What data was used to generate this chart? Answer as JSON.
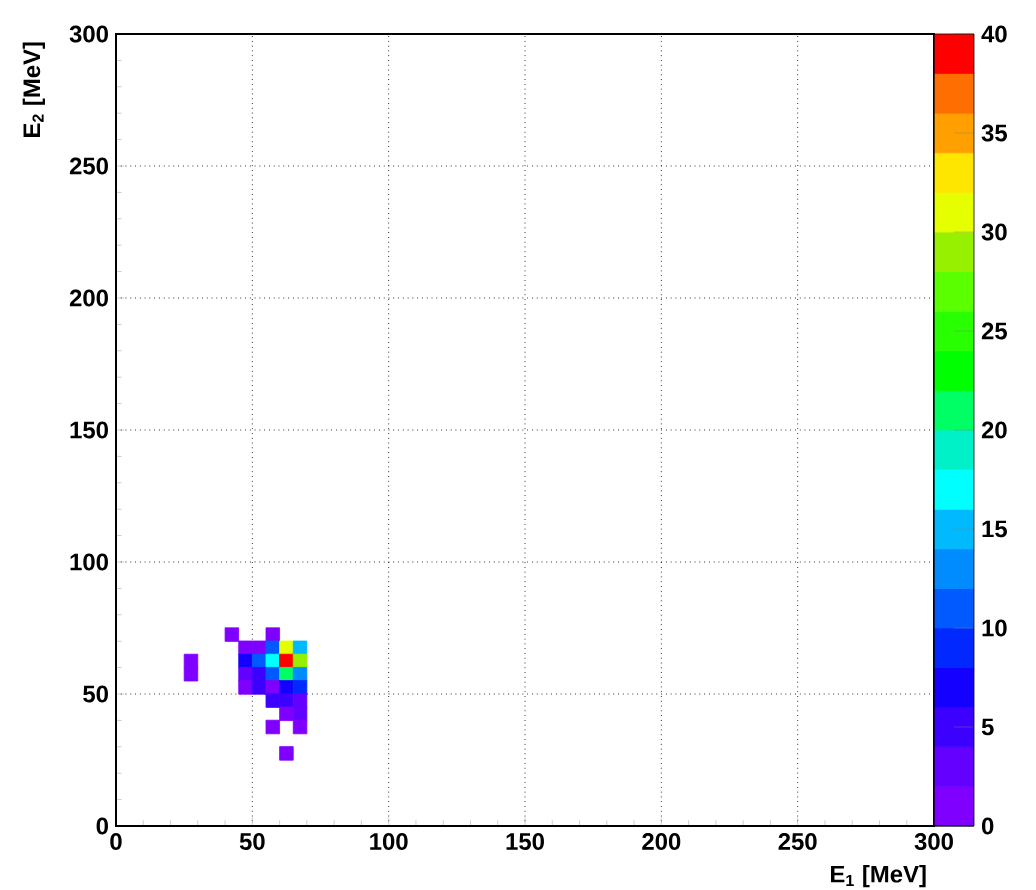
{
  "chart_data": {
    "type": "scatter",
    "xlabel": "E$_{1}$ [MeV]",
    "ylabel": "E$_{2}$ [MeV]",
    "xlim": [
      0,
      300
    ],
    "ylim": [
      0,
      300
    ],
    "xticks": [
      0,
      50,
      100,
      150,
      200,
      250,
      300
    ],
    "yticks": [
      0,
      50,
      100,
      150,
      200,
      250,
      300
    ],
    "clim": [
      0,
      40
    ],
    "cticks": [
      0,
      5,
      10,
      15,
      20,
      25,
      30,
      35,
      40
    ],
    "grid": true,
    "marker": "square",
    "x": [
      42.5,
      57.5,
      47.5,
      52.5,
      57.5,
      62.5,
      67.5,
      27.5,
      47.5,
      52.5,
      57.5,
      62.5,
      67.5,
      27.5,
      47.5,
      52.5,
      57.5,
      62.5,
      67.5,
      47.5,
      52.5,
      57.5,
      62.5,
      67.5,
      57.5,
      62.5,
      67.5,
      62.5,
      67.5,
      57.5,
      67.5,
      62.5
    ],
    "values": [
      72.5,
      72.5,
      67.5,
      67.5,
      67.5,
      67.5,
      67.5,
      62.5,
      62.5,
      62.5,
      62.5,
      62.5,
      62.5,
      57.5,
      57.5,
      57.5,
      57.5,
      57.5,
      57.5,
      52.5,
      52.5,
      52.5,
      52.5,
      52.5,
      47.5,
      47.5,
      47.5,
      42.5,
      42.5,
      37.5,
      37.5,
      27.5
    ],
    "cvalues": [
      1,
      1,
      1,
      1,
      11,
      31,
      14,
      1,
      7,
      11,
      17,
      39,
      29,
      1,
      3,
      5,
      11,
      21,
      12,
      1,
      5,
      1,
      7,
      9,
      4,
      4,
      2,
      1,
      3,
      1,
      1,
      1
    ]
  }
}
